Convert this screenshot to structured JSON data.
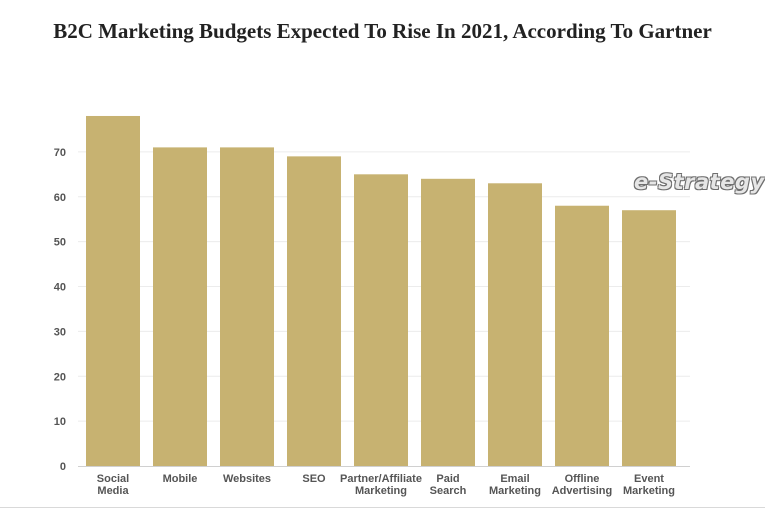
{
  "title": "B2C Marketing Budgets Expected To Rise In 2021, According To Gartner",
  "watermark": "e-Strategy",
  "colors": {
    "bar": "#c7b271",
    "grid": "#ececec",
    "axis": "#d0d0d0",
    "tick_text": "#555555"
  },
  "chart_data": {
    "type": "bar",
    "title": "B2C Marketing Budgets Expected To Rise In 2021, According To Gartner",
    "xlabel": "",
    "ylabel": "",
    "categories": [
      [
        "Social",
        "Media"
      ],
      [
        "Mobile"
      ],
      [
        "Websites"
      ],
      [
        "SEO"
      ],
      [
        "Partner/Affiliate",
        "Marketing"
      ],
      [
        "Paid",
        "Search"
      ],
      [
        "Email",
        "Marketing"
      ],
      [
        "Offline",
        "Advertising"
      ],
      [
        "Event",
        "Marketing"
      ]
    ],
    "values": [
      78,
      71,
      71,
      69,
      65,
      64,
      63,
      58,
      57
    ],
    "ylim": [
      0,
      80
    ],
    "yticks": [
      0,
      10,
      20,
      30,
      40,
      50,
      60,
      70
    ],
    "grid": true,
    "legend": "none"
  }
}
